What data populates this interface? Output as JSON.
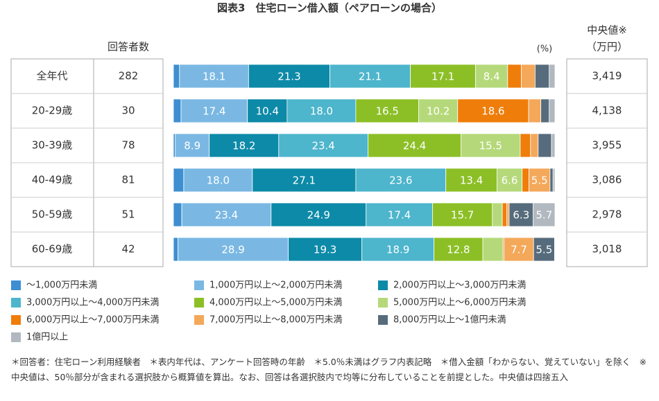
{
  "chart_data": {
    "type": "stacked-bar",
    "title": "図表3　住宅ローン借入額（ペアローンの場合）",
    "unit_label": "(%)",
    "categories": [
      "全年代",
      "20-29歳",
      "30-39歳",
      "40-49歳",
      "50-59歳",
      "60-69歳"
    ],
    "xlim": [
      0,
      100
    ],
    "series": [
      {
        "name": "～1,000万円未満",
        "color": "#3d8fd1",
        "values": [
          1.6,
          2.0,
          0.5,
          2.7,
          2.2,
          1.2
        ],
        "value_labels": [
          null,
          null,
          null,
          null,
          null,
          null
        ]
      },
      {
        "name": "1,000万円以上～2,000万円未満",
        "color": "#7ab8e3",
        "values": [
          18.1,
          17.4,
          8.9,
          18.0,
          23.4,
          28.9
        ],
        "value_labels": [
          "18.1",
          "17.4",
          "8.9",
          "18.0",
          "23.4",
          "28.9"
        ]
      },
      {
        "name": "2,000万円以上～3,000万円未満",
        "color": "#0d8aa8",
        "values": [
          21.3,
          10.4,
          18.2,
          27.1,
          24.9,
          19.3
        ],
        "value_labels": [
          "21.3",
          "10.4",
          "18.2",
          "27.1",
          "24.9",
          "19.3"
        ]
      },
      {
        "name": "3,000万円以上～4,000万円未満",
        "color": "#4db5cc",
        "values": [
          21.1,
          18.0,
          23.4,
          23.6,
          17.4,
          18.9
        ],
        "value_labels": [
          "21.1",
          "18.0",
          "23.4",
          "23.6",
          "17.4",
          "18.9"
        ]
      },
      {
        "name": "4,000万円以上～5,000万円未満",
        "color": "#8cbf26",
        "values": [
          17.1,
          16.5,
          24.4,
          13.4,
          15.7,
          12.8
        ],
        "value_labels": [
          "17.1",
          "16.5",
          "24.4",
          "13.4",
          "15.7",
          "12.8"
        ]
      },
      {
        "name": "5,000万円以上～6,000万円未満",
        "color": "#b5d97a",
        "values": [
          8.4,
          10.2,
          15.5,
          6.6,
          2.6,
          5.3
        ],
        "value_labels": [
          "8.4",
          "10.2",
          "15.5",
          "6.6",
          null,
          null
        ]
      },
      {
        "name": "6,000万円以上～7,000万円未満",
        "color": "#ef7d0a",
        "values": [
          3.6,
          18.6,
          2.7,
          1.8,
          1.2,
          0.3
        ],
        "value_labels": [
          null,
          "18.6",
          null,
          null,
          null,
          null
        ]
      },
      {
        "name": "7,000万円以上～8,000万円未満",
        "color": "#f4a85a",
        "values": [
          3.6,
          3.2,
          2.0,
          5.5,
          0.6,
          7.7
        ],
        "value_labels": [
          null,
          null,
          null,
          "5.5",
          null,
          "7.7"
        ]
      },
      {
        "name": "8,000万円以上～1億円未満",
        "color": "#566c7c",
        "values": [
          3.7,
          2.2,
          3.5,
          0.8,
          6.3,
          5.5
        ],
        "value_labels": [
          null,
          null,
          null,
          null,
          "6.3",
          "5.5"
        ]
      },
      {
        "name": "1億円以上",
        "color": "#b1b8bf",
        "values": [
          1.5,
          1.5,
          0.9,
          0.5,
          5.7,
          0.1
        ],
        "value_labels": [
          null,
          null,
          null,
          null,
          "5.7",
          null
        ]
      }
    ]
  },
  "table": {
    "respondents_header": "回答者数",
    "median_header": "中央値※",
    "median_unit": "（万円）",
    "respondents": [
      282,
      30,
      78,
      81,
      51,
      42
    ],
    "medians": [
      "3,419",
      "4,138",
      "3,955",
      "3,086",
      "2,978",
      "3,018"
    ]
  },
  "footnote": "＊回答者：住宅ローン利用経験者　＊表内年代は、アンケート回答時の年齢　＊5.0％未満はグラフ内表記略　＊借入金額「わからない、覚えていない」を除く　※中央値は、50％部分が含まれる選択肢から概算値を算出。なお、回答は各選択肢内で均等に分布していることを前提とした。中央値は四捨五入"
}
